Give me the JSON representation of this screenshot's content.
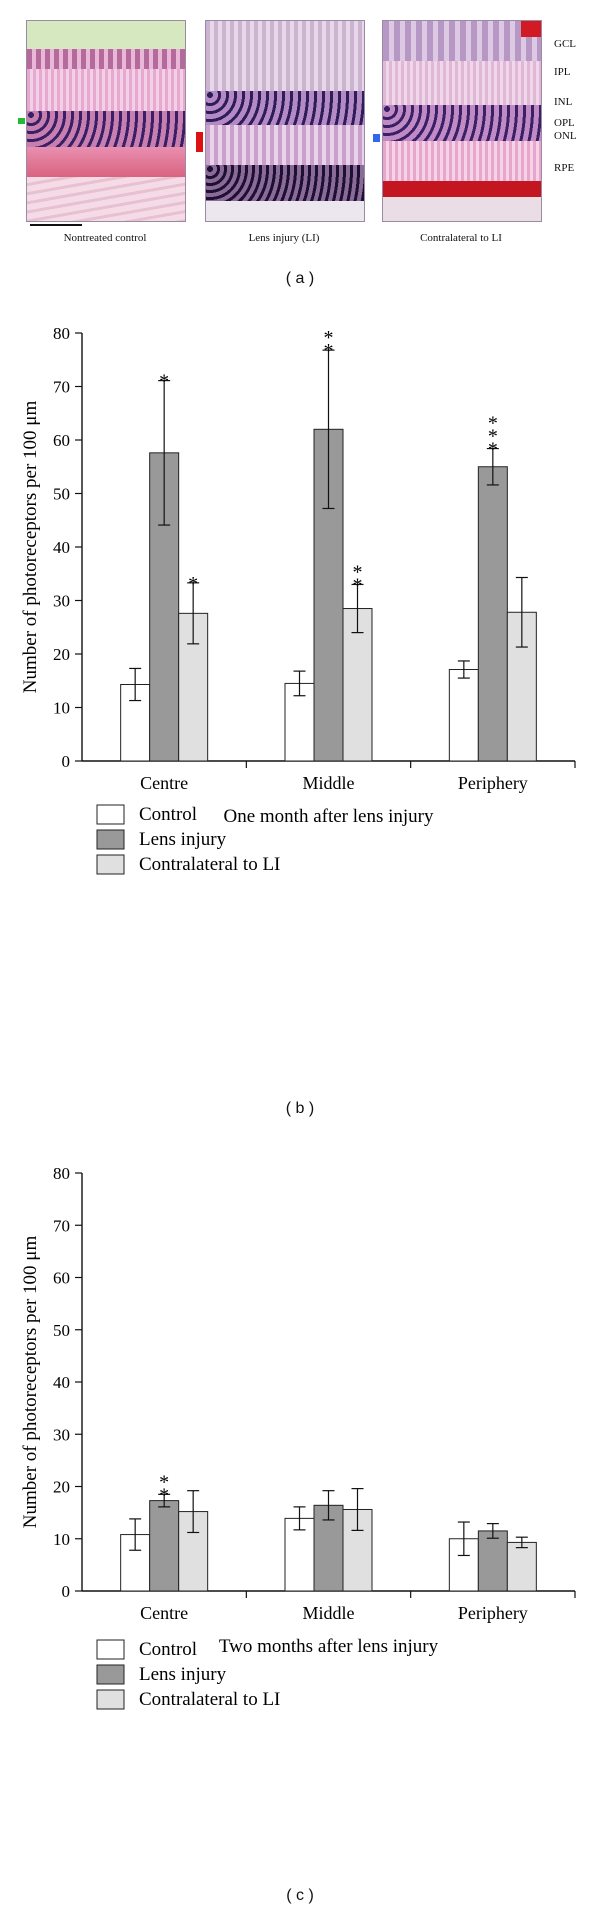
{
  "panel_a": {
    "captions": [
      "Nontreated control",
      "Lens injury (LI)",
      "Contralateral to LI"
    ],
    "layers": [
      "GCL",
      "IPL",
      "INL",
      "OPL",
      "ONL",
      "RPE"
    ],
    "label": "( a )"
  },
  "panel_labels": {
    "b": "( b )",
    "c": "( c )"
  },
  "colors": {
    "Control": "#ffffff",
    "Lens injury": "#999999",
    "Contralateral to LI": "#e0e0e0",
    "marker_green": "#22bb33",
    "marker_red": "#dd1111",
    "marker_blue": "#3366ee"
  },
  "chart_data": [
    {
      "type": "bar",
      "panel": "b",
      "categories": [
        "Centre",
        "Middle",
        "Periphery"
      ],
      "xlabel": "One month after lens injury",
      "ylabel": "Number of photoreceptors per 100 μm",
      "ylim": [
        0,
        80
      ],
      "yticks": [
        0,
        10,
        20,
        30,
        40,
        50,
        60,
        70,
        80
      ],
      "series": [
        {
          "name": "Control",
          "values": [
            14.3,
            14.5,
            17.1
          ],
          "errors": [
            3.0,
            2.3,
            1.6
          ],
          "stars": [
            "",
            "",
            ""
          ]
        },
        {
          "name": "Lens injury",
          "values": [
            57.6,
            62.0,
            55.0
          ],
          "errors": [
            13.5,
            14.8,
            3.4
          ],
          "stars": [
            "*",
            "**",
            "***"
          ]
        },
        {
          "name": "Contralateral to LI",
          "values": [
            27.6,
            28.5,
            27.8
          ],
          "errors": [
            5.7,
            4.5,
            6.5
          ],
          "stars": [
            "*",
            "**",
            ""
          ]
        }
      ],
      "legend": "bottom-left"
    },
    {
      "type": "bar",
      "panel": "c",
      "categories": [
        "Centre",
        "Middle",
        "Periphery"
      ],
      "xlabel": "Two months after lens injury",
      "ylabel": "Number of photoreceptors per 100 μm",
      "ylim": [
        0,
        80
      ],
      "yticks": [
        0,
        10,
        20,
        30,
        40,
        50,
        60,
        70,
        80
      ],
      "series": [
        {
          "name": "Control",
          "values": [
            10.8,
            13.9,
            10.0
          ],
          "errors": [
            3.0,
            2.2,
            3.2
          ],
          "stars": [
            "",
            "",
            ""
          ]
        },
        {
          "name": "Lens injury",
          "values": [
            17.3,
            16.4,
            11.5
          ],
          "errors": [
            1.2,
            2.8,
            1.4
          ],
          "stars": [
            "**",
            "",
            ""
          ]
        },
        {
          "name": "Contralateral to LI",
          "values": [
            15.2,
            15.6,
            9.3
          ],
          "errors": [
            4.0,
            4.0,
            1.0
          ],
          "stars": [
            "",
            "",
            ""
          ]
        }
      ],
      "legend": "bottom-left"
    }
  ]
}
